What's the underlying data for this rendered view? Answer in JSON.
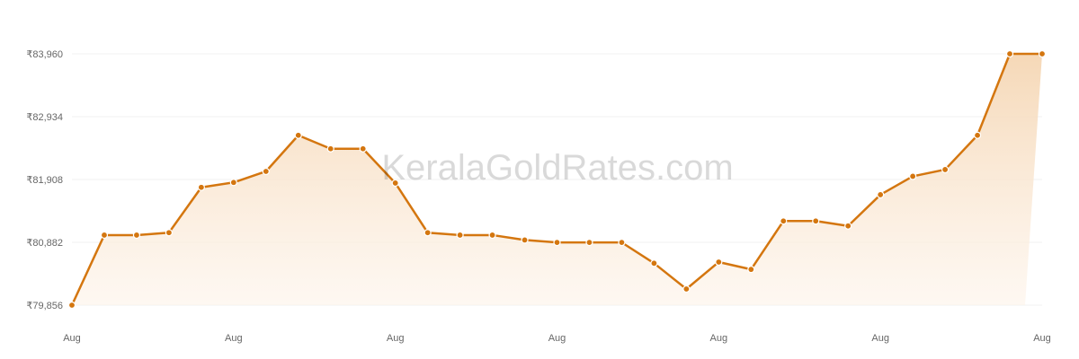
{
  "watermark": "KeralaGoldRates.com",
  "colors": {
    "line": "#d4760f",
    "area_top": "#f5d6b3",
    "area_bottom": "#fdf3e9",
    "grid": "#f2f2f2",
    "point_stroke": "#ffffff"
  },
  "chart_data": {
    "type": "area",
    "grid": true,
    "legend": "none",
    "ylim": [
      79856,
      83960
    ],
    "y_ticks": [
      79856,
      80882,
      81908,
      82934,
      83960
    ],
    "y_tick_labels": [
      "₹79,856",
      "₹80,882",
      "₹81,908",
      "₹82,934",
      "₹83,960"
    ],
    "x_tick_labels": [
      "Aug",
      "Aug",
      "Aug",
      "Aug",
      "Aug",
      "Aug",
      "Aug"
    ],
    "values": [
      79856,
      81000,
      81000,
      81040,
      81780,
      81860,
      82040,
      82630,
      82410,
      82410,
      81850,
      81040,
      81000,
      81000,
      80920,
      80880,
      80880,
      80880,
      80540,
      80120,
      80560,
      80440,
      81230,
      81230,
      81150,
      81660,
      81960,
      82070,
      82630,
      83960,
      83960
    ]
  }
}
